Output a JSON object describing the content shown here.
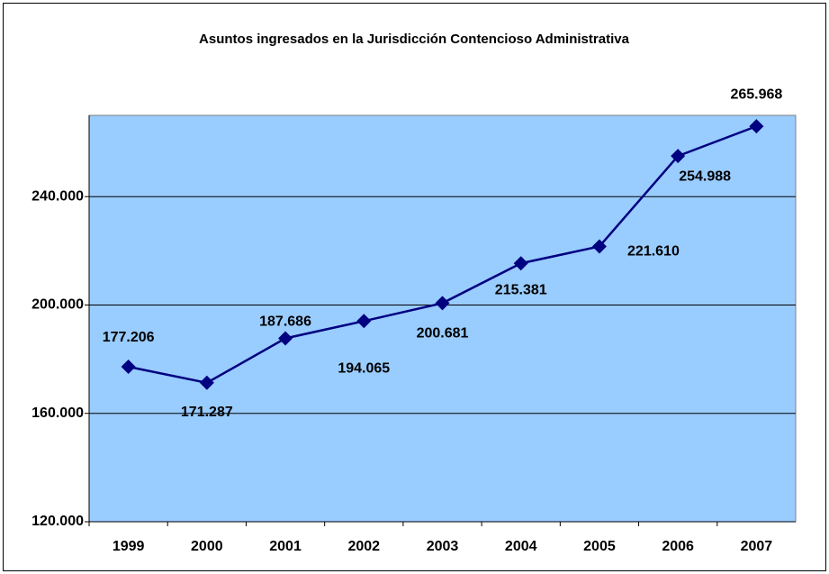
{
  "chart_data": {
    "type": "line",
    "title": "Asuntos ingresados en la Jurisdicción Contencioso Administrativa",
    "categories": [
      "1999",
      "2000",
      "2001",
      "2002",
      "2003",
      "2004",
      "2005",
      "2006",
      "2007"
    ],
    "values": [
      177206,
      171287,
      187686,
      194065,
      200681,
      215381,
      221610,
      254988,
      265968
    ],
    "value_labels": [
      "177.206",
      "171.287",
      "187.686",
      "194.065",
      "200.681",
      "215.381",
      "221.610",
      "254.988",
      "265.968"
    ],
    "color": "#000080",
    "plot_background": "#99ccff",
    "ylim": [
      120000,
      270000
    ],
    "yticks": [
      {
        "value": 120000,
        "label": "120.000"
      },
      {
        "value": 160000,
        "label": "160.000"
      },
      {
        "value": 200000,
        "label": "200.000"
      },
      {
        "value": 240000,
        "label": "240.000"
      }
    ],
    "grid": true
  }
}
